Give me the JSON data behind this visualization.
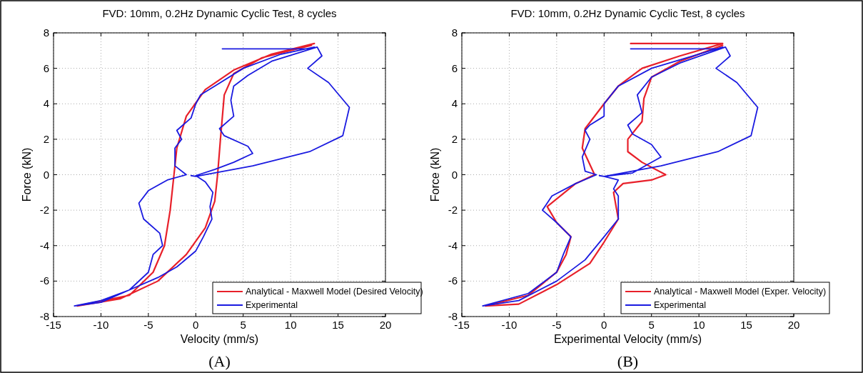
{
  "chart_data": [
    {
      "type": "line",
      "title": "FVD: 10mm, 0.2Hz Dynamic Cyclic Test, 8 cycles",
      "xlabel": "Velocity (mm/s)",
      "ylabel": "Force (kN)",
      "xlim": [
        -15,
        20
      ],
      "ylim": [
        -8,
        8
      ],
      "xticks": [
        -15,
        -10,
        -5,
        0,
        5,
        10,
        15,
        20
      ],
      "yticks": [
        -8,
        -6,
        -4,
        -2,
        0,
        2,
        4,
        6,
        8
      ],
      "grid": true,
      "legend": "bottom right",
      "line_style": "solid",
      "marker": "none",
      "annotations": [
        "(A)"
      ],
      "series": [
        {
          "name": "Analytical - Maxwell Model (Desired Velocity)",
          "color": "#e8202a",
          "x": [
            12.5,
            8,
            4,
            1,
            -1,
            -2,
            -2.3,
            -2.7,
            -3.3,
            -4.5,
            -7,
            -12.5,
            -8,
            -4,
            -1,
            1,
            2,
            2.3,
            2.6,
            3,
            4,
            7,
            12.2
          ],
          "values": [
            7.4,
            6.8,
            5.9,
            4.8,
            3.3,
            1.5,
            0,
            -2,
            -4,
            -5.5,
            -6.8,
            -7.4,
            -7,
            -6,
            -4.5,
            -3,
            -1.5,
            0,
            2,
            4.5,
            5.7,
            6.6,
            7.3
          ]
        },
        {
          "name": "Experimental",
          "color": "#1a1ae0",
          "x": [
            2.8,
            12,
            12.8,
            13.3,
            11.8,
            14,
            16.2,
            15.5,
            12,
            6,
            0,
            -0.5,
            null,
            12.5,
            9,
            5,
            2,
            0.5,
            0,
            -0.5,
            -2,
            -1.5,
            -2.2,
            -2.2,
            -1,
            -3,
            -5,
            -6,
            -5.5,
            -3.8,
            -3.5,
            -4.5,
            -5,
            -7,
            -10,
            -12.8,
            -10,
            -7,
            -4,
            -2,
            0,
            0.8,
            1.7,
            1.5,
            1.8,
            1,
            0,
            2,
            4,
            6,
            5.5,
            3,
            2.5,
            4,
            3.7,
            4,
            5.5,
            8,
            12.8
          ],
          "values": [
            7.1,
            7.1,
            7.2,
            6.7,
            6,
            5.2,
            3.8,
            2.2,
            1.3,
            0.5,
            -0.1,
            -0.05,
            null,
            7.2,
            6.8,
            6,
            5,
            4.5,
            4,
            3.2,
            2.5,
            2,
            1.5,
            0.5,
            0,
            -0.3,
            -0.9,
            -1.6,
            -2.5,
            -3.3,
            -4,
            -4.5,
            -5.5,
            -6.5,
            -7.1,
            -7.4,
            -7.2,
            -6.5,
            -5.8,
            -5.2,
            -4.3,
            -3.5,
            -2.5,
            -1.8,
            -1,
            -0.4,
            -0.05,
            0.3,
            0.7,
            1.2,
            1.6,
            2.2,
            2.6,
            3.3,
            4.2,
            5,
            5.6,
            6.4,
            7.2
          ]
        }
      ]
    },
    {
      "type": "line",
      "title": "FVD: 10mm, 0.2Hz Dynamic Cyclic Test, 8 cycles",
      "xlabel": "Experimental Velocity (mm/s)",
      "ylabel": "Force (kN)",
      "xlim": [
        -15,
        20
      ],
      "ylim": [
        -8,
        8
      ],
      "xticks": [
        -15,
        -10,
        -5,
        0,
        5,
        10,
        15,
        20
      ],
      "yticks": [
        -8,
        -6,
        -4,
        -2,
        0,
        2,
        4,
        6,
        8
      ],
      "grid": true,
      "legend": "bottom right",
      "line_style": "solid",
      "marker": "none",
      "annotations": [
        "(B)"
      ],
      "series": [
        {
          "name": "Analytical - Maxwell Model (Exper. Velocity)",
          "color": "#e8202a",
          "x": [
            2.8,
            12.5,
            null,
            12.5,
            8,
            4,
            1.5,
            0,
            -2,
            -2.3,
            -1,
            -3,
            -6,
            -5,
            -3.5,
            -4,
            -5,
            -8,
            -12.5,
            -9,
            -5,
            -1.5,
            0,
            1.5,
            1,
            2,
            5,
            6.5,
            4,
            2.5,
            2.5,
            4,
            4.2,
            5,
            8,
            12.5
          ],
          "values": [
            7.4,
            7.4,
            null,
            7.4,
            6.7,
            6,
            5,
            4,
            2.6,
            1.5,
            0,
            -0.5,
            -1.8,
            -2.7,
            -3.5,
            -4.5,
            -5.5,
            -6.8,
            -7.4,
            -7.3,
            -6.2,
            -5,
            -3.8,
            -2.5,
            -1,
            -0.5,
            -0.3,
            0,
            0.7,
            1.3,
            2,
            3,
            4.3,
            5.5,
            6.4,
            7.3
          ]
        },
        {
          "name": "Experimental",
          "color": "#1a1ae0",
          "x": [
            2.8,
            12,
            12.8,
            13.3,
            11.8,
            14,
            16.2,
            15.5,
            12,
            6,
            0,
            -0.5,
            null,
            12.5,
            5,
            1.5,
            0,
            0,
            -1.5,
            -2,
            -1.5,
            -2.3,
            -2,
            -0.8,
            -3,
            -5.5,
            -6.5,
            -5,
            -3.5,
            -4.3,
            -5,
            -8,
            -12.8,
            -9,
            -5,
            -2,
            0,
            1.5,
            1.5,
            1,
            1.5,
            0,
            3,
            6,
            5,
            3,
            2.5,
            4,
            3.5,
            5,
            8,
            12.8
          ],
          "values": [
            7.1,
            7.1,
            7.2,
            6.7,
            6,
            5.2,
            3.8,
            2.2,
            1.3,
            0.5,
            -0.1,
            -0.05,
            null,
            7.2,
            6,
            5,
            4,
            3.3,
            2.8,
            2.5,
            2,
            1,
            0.2,
            0,
            -0.5,
            -1.2,
            -2,
            -2.7,
            -3.5,
            -4.5,
            -5.5,
            -6.7,
            -7.4,
            -7.1,
            -6,
            -4.8,
            -3.5,
            -2.5,
            -1.2,
            -0.8,
            -0.3,
            -0.1,
            0.1,
            1,
            1.7,
            2.3,
            2.8,
            3.5,
            4.5,
            5.5,
            6.3,
            7.2
          ]
        }
      ]
    }
  ]
}
